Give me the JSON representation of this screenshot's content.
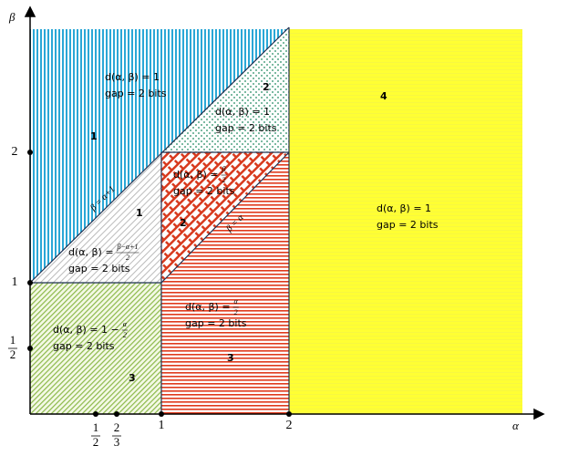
{
  "axes": {
    "x_label": "α",
    "y_label": "β",
    "x_ticks": [
      {
        "num": "1",
        "den": "2"
      },
      {
        "num": "2",
        "den": "3"
      },
      "1",
      "2"
    ],
    "y_ticks": [
      "2",
      "1",
      {
        "num": "1",
        "den": "2"
      }
    ]
  },
  "line_labels": [
    "β = α+1",
    "β = α"
  ],
  "regions": [
    {
      "number": "1",
      "formula": "d(α, β) = 1",
      "gap": "gap = 2 bits"
    },
    {
      "number": "2",
      "formula": "d(α, β) = 1",
      "gap": "gap = 2 bits"
    },
    {
      "number": "1",
      "formula": {
        "prefix": "d(α, β) =",
        "num": "β−α+1",
        "den": "2"
      },
      "gap": "gap = 2 bits"
    },
    {
      "number": "2",
      "formula": {
        "prefix": "d(α, β) =",
        "num": "β",
        "den": "2"
      },
      "gap": "gap = 2 bits"
    },
    {
      "number": "3",
      "formula": {
        "prefix": "d(α, β) =",
        "num": "α",
        "den": "2"
      },
      "gap": "gap = 2 bits"
    },
    {
      "number": "3",
      "formula": {
        "prefix": "d(α, β) = 1 −",
        "num": "α",
        "den": "2"
      },
      "gap": "gap = 2 bits"
    },
    {
      "number": "4",
      "formula": "d(α, β) = 1",
      "gap": "gap = 2 bits"
    }
  ]
}
